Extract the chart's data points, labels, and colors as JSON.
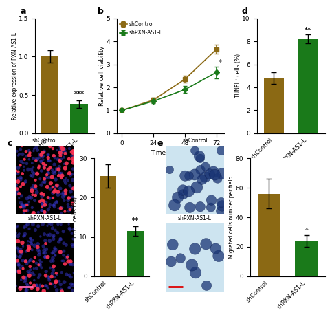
{
  "panel_a": {
    "categories": [
      "shControl",
      "shPXN-AS1-L"
    ],
    "values": [
      1.0,
      0.38
    ],
    "errors": [
      0.08,
      0.05
    ],
    "colors": [
      "#8B6914",
      "#1a7a1a"
    ],
    "ylabel": "Relative expression of PXN-AS1-L",
    "ylim": [
      0,
      1.5
    ],
    "yticks": [
      0.0,
      0.5,
      1.0,
      1.5
    ],
    "significance": "***",
    "label": "a"
  },
  "panel_b": {
    "time": [
      0,
      24,
      48,
      72
    ],
    "shControl_values": [
      1.0,
      1.45,
      2.35,
      3.65
    ],
    "shControl_errors": [
      0.03,
      0.1,
      0.15,
      0.2
    ],
    "shPXN_values": [
      1.0,
      1.4,
      1.9,
      2.65
    ],
    "shPXN_errors": [
      0.03,
      0.08,
      0.15,
      0.25
    ],
    "shControl_color": "#8B6914",
    "shPXN_color": "#1a7a1a",
    "ylabel": "Relative cell viability",
    "xlabel": "Time (hours)",
    "ylim": [
      0,
      5
    ],
    "yticks": [
      0,
      1,
      2,
      3,
      4,
      5
    ],
    "xticks": [
      0,
      24,
      48,
      72
    ],
    "significance": "*",
    "label": "b",
    "legend_shControl": "shControl",
    "legend_shPXN": "shPXN-AS1-L"
  },
  "panel_c_bar": {
    "categories": [
      "shControl",
      "shPXN-AS1-L"
    ],
    "values": [
      25.5,
      11.5
    ],
    "errors": [
      3.0,
      1.2
    ],
    "colors": [
      "#8B6914",
      "#1a7a1a"
    ],
    "ylabel": "EdU⁺ cells (%)",
    "ylim": [
      0,
      30
    ],
    "yticks": [
      0,
      10,
      20,
      30
    ],
    "significance": "**",
    "label": "c"
  },
  "panel_d": {
    "categories": [
      "shControl",
      "shPXN-AS1-L"
    ],
    "values": [
      4.8,
      8.2
    ],
    "errors": [
      0.5,
      0.4
    ],
    "colors": [
      "#8B6914",
      "#1a7a1a"
    ],
    "ylabel": "TUNEL⁺ cells (%)",
    "ylim": [
      0,
      10
    ],
    "yticks": [
      0,
      2,
      4,
      6,
      8,
      10
    ],
    "significance": "**",
    "label": "d"
  },
  "panel_e_bar": {
    "categories": [
      "shControl",
      "shPXN-AS1-L"
    ],
    "values": [
      56,
      24
    ],
    "errors": [
      10,
      4
    ],
    "colors": [
      "#8B6914",
      "#1a7a1a"
    ],
    "ylabel": "Migrated cells number per field",
    "ylim": [
      0,
      80
    ],
    "yticks": [
      0,
      20,
      40,
      60,
      80
    ],
    "significance": "*",
    "label": "e"
  },
  "panel_c_img_top_label": "shControl",
  "panel_c_img_bot_label": "shPXN-AS1-L",
  "panel_e_img_top_label": "shControl",
  "panel_e_img_bot_label": "shPXN-AS1-L"
}
